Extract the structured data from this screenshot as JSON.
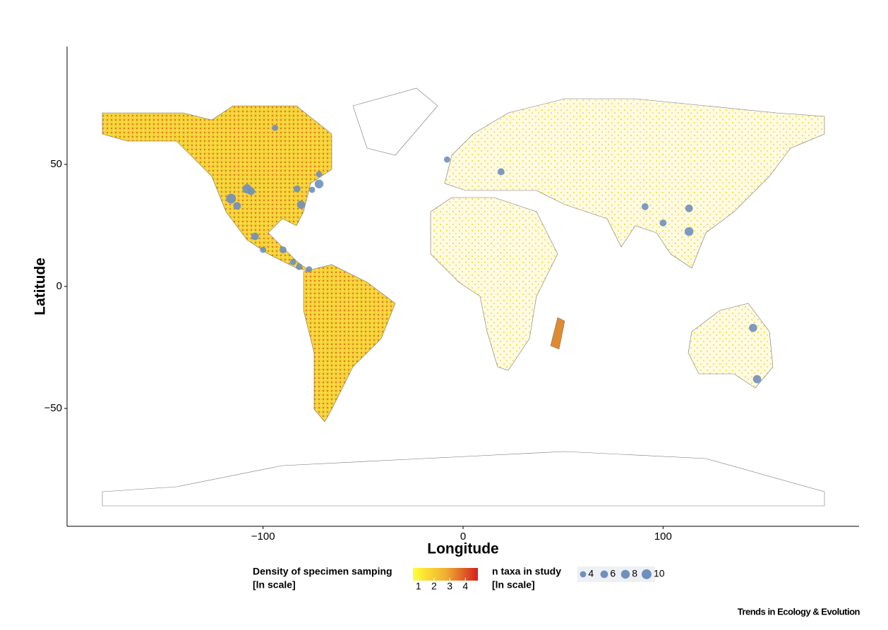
{
  "chart_data": {
    "type": "bubble_map",
    "xlabel": "Longitude",
    "ylabel": "Latitude",
    "xlim": [
      -198,
      198
    ],
    "ylim": [
      -98.3,
      98.3
    ],
    "xticks": [
      {
        "value": -100,
        "label": "−100"
      },
      0,
      100
    ],
    "yticks": [
      50,
      0,
      {
        "value": -50,
        "label": "−50"
      }
    ],
    "color": "#6f8fbd",
    "points": {
      "lon": [
        -94,
        -116,
        -108,
        -106,
        -113,
        -104,
        -100,
        -90,
        -85,
        -82,
        -77,
        -83,
        -81,
        -75.5,
        -72,
        -72,
        -8,
        19,
        91,
        100,
        113,
        113,
        145,
        147
      ],
      "lat": [
        65,
        36,
        40,
        39,
        33,
        20.5,
        15,
        15,
        10,
        8,
        7,
        40,
        33.5,
        39.6,
        42,
        46,
        52,
        47,
        32.7,
        26,
        32,
        22.5,
        -17,
        -38
      ],
      "size": [
        4,
        10,
        9,
        6,
        6,
        6,
        4,
        5,
        4,
        4,
        4,
        5,
        7,
        4,
        8,
        4,
        4,
        5,
        5,
        5,
        6,
        8,
        7,
        7
      ]
    },
    "density_legend": {
      "title": "Density of specimen samping",
      "subtitle": "[ln scale]",
      "colors": [
        "#ffff33",
        "#f0b030",
        "#d42020"
      ],
      "lim": [
        0.65,
        4.8
      ],
      "ticks": [
        1,
        2,
        3,
        4
      ]
    },
    "size_legend": {
      "title": "n taxa in study",
      "subtitle": "[ln scale]",
      "sizes": [
        4,
        6,
        8,
        10
      ]
    },
    "source": "Trends in Ecology & Evolution"
  }
}
